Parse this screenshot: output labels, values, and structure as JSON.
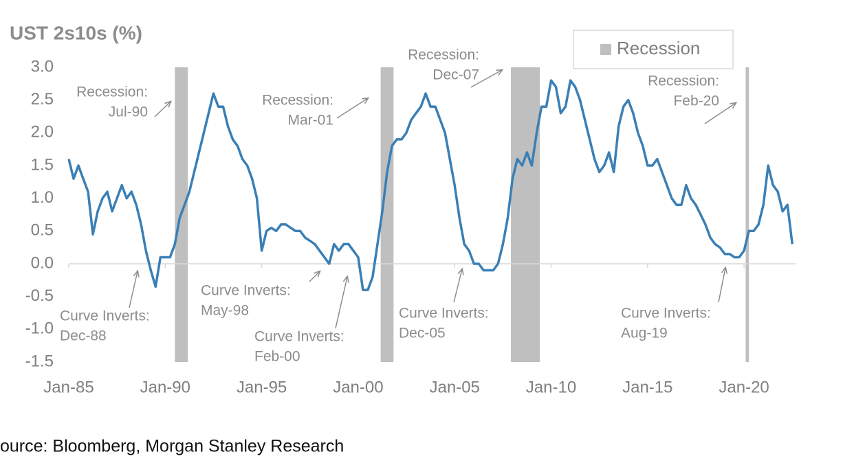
{
  "chart_data": {
    "type": "line",
    "title": "UST 2s10s (%)",
    "source": "ource: Bloomberg, Morgan Stanley Research",
    "x": [
      "1985-01",
      "1985-04",
      "1985-07",
      "1985-10",
      "1986-01",
      "1986-04",
      "1986-07",
      "1986-10",
      "1987-01",
      "1987-04",
      "1987-07",
      "1987-10",
      "1988-01",
      "1988-04",
      "1988-07",
      "1988-10",
      "1989-01",
      "1989-04",
      "1989-07",
      "1989-10",
      "1990-01",
      "1990-04",
      "1990-07",
      "1990-10",
      "1991-01",
      "1991-04",
      "1991-07",
      "1991-10",
      "1992-01",
      "1992-04",
      "1992-07",
      "1992-10",
      "1993-01",
      "1993-04",
      "1993-07",
      "1993-10",
      "1994-01",
      "1994-04",
      "1994-07",
      "1994-10",
      "1995-01",
      "1995-04",
      "1995-07",
      "1995-10",
      "1996-01",
      "1996-04",
      "1996-07",
      "1996-10",
      "1997-01",
      "1997-04",
      "1997-07",
      "1997-10",
      "1998-01",
      "1998-04",
      "1998-07",
      "1998-10",
      "1999-01",
      "1999-04",
      "1999-07",
      "1999-10",
      "2000-01",
      "2000-04",
      "2000-07",
      "2000-10",
      "2001-01",
      "2001-04",
      "2001-07",
      "2001-10",
      "2002-01",
      "2002-04",
      "2002-07",
      "2002-10",
      "2003-01",
      "2003-04",
      "2003-07",
      "2003-10",
      "2004-01",
      "2004-04",
      "2004-07",
      "2004-10",
      "2005-01",
      "2005-04",
      "2005-07",
      "2005-10",
      "2006-01",
      "2006-04",
      "2006-07",
      "2006-10",
      "2007-01",
      "2007-04",
      "2007-07",
      "2007-10",
      "2008-01",
      "2008-04",
      "2008-07",
      "2008-10",
      "2009-01",
      "2009-04",
      "2009-07",
      "2009-10",
      "2010-01",
      "2010-04",
      "2010-07",
      "2010-10",
      "2011-01",
      "2011-04",
      "2011-07",
      "2011-10",
      "2012-01",
      "2012-04",
      "2012-07",
      "2012-10",
      "2013-01",
      "2013-04",
      "2013-07",
      "2013-10",
      "2014-01",
      "2014-04",
      "2014-07",
      "2014-10",
      "2015-01",
      "2015-04",
      "2015-07",
      "2015-10",
      "2016-01",
      "2016-04",
      "2016-07",
      "2016-10",
      "2017-01",
      "2017-04",
      "2017-07",
      "2017-10",
      "2018-01",
      "2018-04",
      "2018-07",
      "2018-10",
      "2019-01",
      "2019-04",
      "2019-07",
      "2019-10",
      "2020-01",
      "2020-04",
      "2020-07",
      "2020-10",
      "2021-01",
      "2021-04",
      "2021-07",
      "2021-10",
      "2022-01",
      "2022-04",
      "2022-07"
    ],
    "series": [
      {
        "name": "UST 2s10s",
        "color": "#3a7fb5",
        "values": [
          1.6,
          1.3,
          1.5,
          1.3,
          1.1,
          0.45,
          0.8,
          1.0,
          1.1,
          0.8,
          1.0,
          1.2,
          1.0,
          1.1,
          0.9,
          0.6,
          0.2,
          -0.1,
          -0.35,
          0.1,
          0.1,
          0.1,
          0.3,
          0.7,
          0.9,
          1.1,
          1.4,
          1.7,
          2.0,
          2.3,
          2.6,
          2.4,
          2.4,
          2.1,
          1.9,
          1.8,
          1.6,
          1.5,
          1.3,
          1.0,
          0.2,
          0.5,
          0.55,
          0.5,
          0.6,
          0.6,
          0.55,
          0.5,
          0.5,
          0.4,
          0.35,
          0.3,
          0.2,
          0.1,
          0.0,
          0.3,
          0.2,
          0.3,
          0.3,
          0.2,
          0.1,
          -0.4,
          -0.4,
          -0.2,
          0.3,
          0.8,
          1.4,
          1.8,
          1.9,
          1.9,
          2.0,
          2.2,
          2.3,
          2.4,
          2.6,
          2.4,
          2.4,
          2.2,
          2.0,
          1.6,
          1.2,
          0.7,
          0.3,
          0.2,
          0.0,
          0.0,
          -0.1,
          -0.1,
          -0.1,
          0.0,
          0.3,
          0.7,
          1.3,
          1.6,
          1.5,
          1.7,
          1.5,
          2.0,
          2.4,
          2.4,
          2.8,
          2.7,
          2.3,
          2.4,
          2.8,
          2.7,
          2.5,
          2.2,
          1.9,
          1.6,
          1.4,
          1.5,
          1.7,
          1.4,
          2.1,
          2.4,
          2.5,
          2.3,
          2.0,
          1.8,
          1.5,
          1.5,
          1.6,
          1.4,
          1.2,
          1.0,
          0.9,
          0.9,
          1.2,
          1.0,
          0.9,
          0.75,
          0.6,
          0.4,
          0.3,
          0.25,
          0.15,
          0.15,
          0.1,
          0.1,
          0.2,
          0.5,
          0.5,
          0.6,
          0.9,
          1.5,
          1.2,
          1.1,
          0.8,
          0.9,
          0.3
        ]
      }
    ],
    "recession": {
      "name": "Recession",
      "color": "#bfbfbf",
      "periods": [
        {
          "start": "1990-07",
          "end": "1991-03"
        },
        {
          "start": "2001-03",
          "end": "2001-11"
        },
        {
          "start": "2007-12",
          "end": "2009-06"
        },
        {
          "start": "2020-02",
          "end": "2020-04"
        }
      ]
    },
    "ylim": [
      -1.5,
      3.0
    ],
    "yticks": [
      {
        "value": -1.5,
        "label": "-1.5"
      },
      {
        "value": -1.0,
        "label": "-1.0"
      },
      {
        "value": -0.5,
        "label": "-0.5"
      },
      {
        "value": 0.0,
        "label": "0.0"
      },
      0.5,
      {
        "value": 1.0,
        "label": "1.0"
      },
      1.5,
      {
        "value": 2.0,
        "label": "2.0"
      },
      2.5,
      {
        "value": 3.0,
        "label": "3.0"
      }
    ],
    "xlim": [
      "1985-01",
      "2022-09"
    ],
    "xticks": [
      {
        "value": "1985-01",
        "label": "Jan-85"
      },
      {
        "value": "1990-01",
        "label": "Jan-90"
      },
      {
        "value": "1995-01",
        "label": "Jan-95"
      },
      {
        "value": "2000-01",
        "label": "Jan-00"
      },
      {
        "value": "2005-01",
        "label": "Jan-05"
      },
      {
        "value": "2010-01",
        "label": "Jan-10"
      },
      {
        "value": "2015-01",
        "label": "Jan-15"
      },
      {
        "value": "2020-01",
        "label": "Jan-20"
      }
    ],
    "legend": "top-right",
    "annotations": [
      {
        "lines": [
          "Recession:",
          "Jul-90"
        ]
      },
      {
        "lines": [
          "Recession:",
          "Mar-01"
        ]
      },
      {
        "lines": [
          "Recession:",
          "Dec-07"
        ]
      },
      {
        "lines": [
          "Recession:",
          "Feb-20"
        ]
      },
      {
        "lines": [
          "Curve Inverts:",
          "Dec-88"
        ]
      },
      {
        "lines": [
          "Curve Inverts:",
          "May-98"
        ]
      },
      {
        "lines": [
          "Curve Inverts:",
          "Feb-00"
        ]
      },
      {
        "lines": [
          "Curve Inverts:",
          "Dec-05"
        ]
      },
      {
        "lines": [
          "Curve Inverts:",
          "Aug-19"
        ]
      }
    ]
  }
}
